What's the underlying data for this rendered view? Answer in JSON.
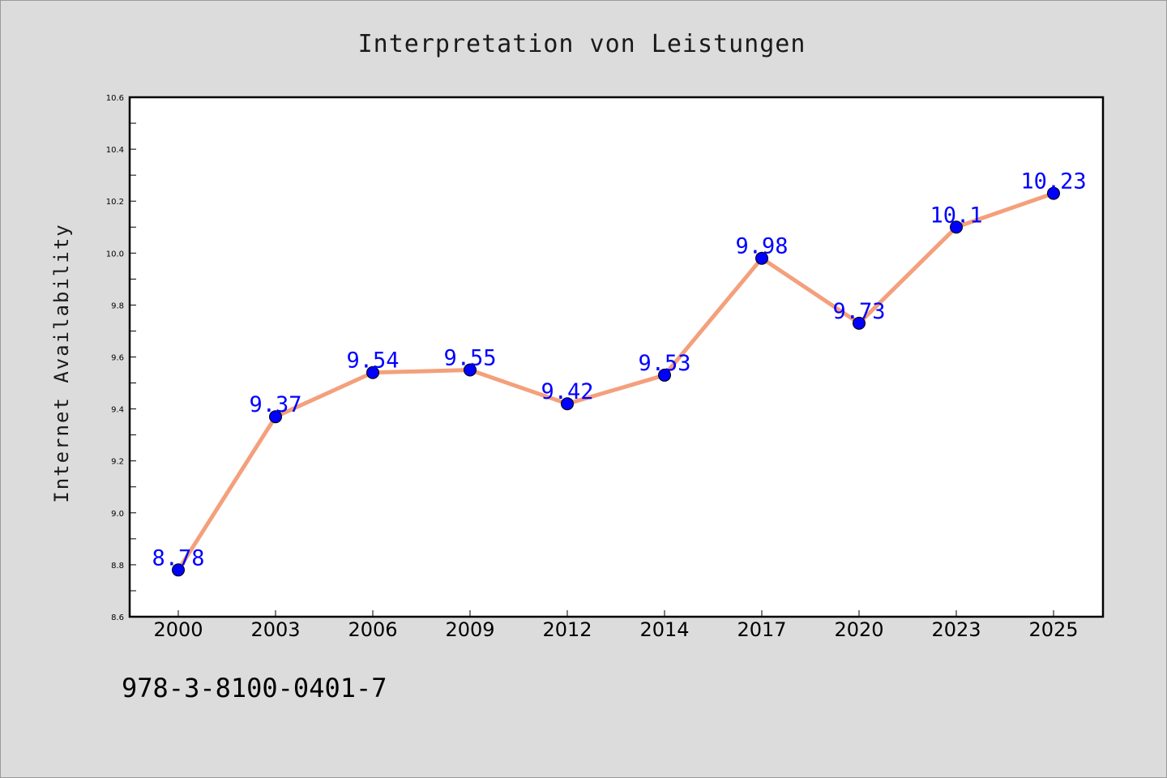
{
  "chart_data": {
    "type": "line",
    "title": "Interpretation von Leistungen",
    "xlabel": "",
    "ylabel": "Internet Availability",
    "categories": [
      "2000",
      "2003",
      "2006",
      "2009",
      "2012",
      "2014",
      "2017",
      "2020",
      "2023",
      "2025"
    ],
    "series": [
      {
        "values": [
          8.78,
          9.37,
          9.54,
          9.55,
          9.42,
          9.53,
          9.98,
          9.73,
          10.1,
          10.23
        ]
      }
    ],
    "data_labels": [
      "8.78",
      "9.37",
      "9.54",
      "9.55",
      "9.42",
      "9.53",
      "9.98",
      "9.73",
      "10.1",
      "10.23"
    ],
    "ylim": [
      8.6,
      10.6
    ],
    "yticks": [
      "8.6",
      "8.8",
      "9.0",
      "9.2",
      "9.4",
      "9.6",
      "9.8",
      "10.0",
      "10.2",
      "10.4",
      "10.6"
    ],
    "ytick_values": [
      8.6,
      8.8,
      9.0,
      9.2,
      9.4,
      9.6,
      9.8,
      10.0,
      10.2,
      10.4,
      10.6
    ],
    "grid": false,
    "line_color": "#f4a07c",
    "marker_color": "#0000ff",
    "label_color": "#0000ff"
  },
  "footer": {
    "isbn": "978-3-8100-0401-7"
  }
}
